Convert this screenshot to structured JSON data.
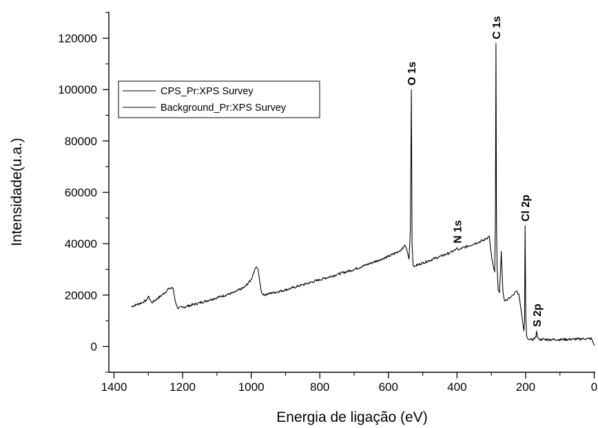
{
  "chart_data": {
    "type": "line",
    "title": "",
    "xlabel": "Energia de ligação (eV)",
    "ylabel": "Intensidade(u.a.)",
    "xlim": [
      1400,
      0
    ],
    "ylim": [
      -10000,
      130000
    ],
    "x_ticks": [
      "1400",
      "1200",
      "1000",
      "800",
      "600",
      "400",
      "200",
      "0"
    ],
    "y_ticks": [
      "0",
      "20000",
      "40000",
      "60000",
      "80000",
      "100000",
      "120000"
    ],
    "grid": false,
    "legend_position": "upper-left",
    "series": [
      {
        "name": "CPS_Pr:XPS Survey",
        "color": "#000000",
        "x": [
          1350,
          1320,
          1305,
          1300,
          1290,
          1260,
          1240,
          1228,
          1222,
          1215,
          1200,
          1150,
          1100,
          1050,
          1020,
          1000,
          990,
          985,
          980,
          975,
          970,
          965,
          950,
          900,
          850,
          800,
          750,
          700,
          650,
          600,
          570,
          556,
          552,
          546,
          540,
          536,
          533,
          531,
          528,
          525,
          520,
          500,
          450,
          420,
          405,
          400,
          396,
          390,
          350,
          320,
          310,
          306,
          302,
          298,
          294,
          290,
          288,
          286.5,
          285,
          283,
          280,
          276,
          273,
          271,
          269,
          266,
          262,
          255,
          245,
          235,
          228,
          220,
          214,
          208,
          205,
          203,
          201.5,
          199.5,
          197,
          193,
          188,
          180,
          170,
          168,
          165,
          160,
          130,
          100,
          60,
          30,
          15,
          8,
          3,
          0
        ],
        "y": [
          15500,
          17000,
          18000,
          19500,
          17000,
          20000,
          22500,
          22800,
          18000,
          15000,
          15200,
          17000,
          19000,
          21000,
          23000,
          26000,
          30000,
          31000,
          30000,
          25000,
          21000,
          20000,
          20500,
          22000,
          24000,
          26000,
          28000,
          30000,
          32500,
          35000,
          37000,
          38500,
          39500,
          37500,
          34000,
          45000,
          100000,
          40000,
          31500,
          31000,
          31500,
          32500,
          35000,
          36500,
          37500,
          38500,
          37500,
          38000,
          40000,
          41500,
          42500,
          43000,
          38000,
          34000,
          31000,
          29000,
          50000,
          118000,
          50000,
          30000,
          22000,
          21000,
          30000,
          37000,
          30000,
          21000,
          18000,
          18000,
          19000,
          20000,
          21500,
          20500,
          15000,
          9000,
          6000,
          10000,
          47000,
          12000,
          4000,
          2800,
          2600,
          2700,
          3500,
          6000,
          3500,
          2800,
          2700,
          2700,
          2800,
          3000,
          3000,
          3100,
          1500,
          300
        ]
      },
      {
        "name": "Background_Pr:XPS Survey",
        "color": "#000000",
        "x": [],
        "y": []
      }
    ],
    "annotations": [
      {
        "text": "O 1s",
        "x": 533,
        "y": 100000
      },
      {
        "text": "N 1s",
        "x": 400,
        "y": 38500
      },
      {
        "text": "C 1s",
        "x": 286.5,
        "y": 118000
      },
      {
        "text": "Cl 2p",
        "x": 201.5,
        "y": 47000
      },
      {
        "text": "S 2p",
        "x": 168,
        "y": 6000
      }
    ]
  }
}
